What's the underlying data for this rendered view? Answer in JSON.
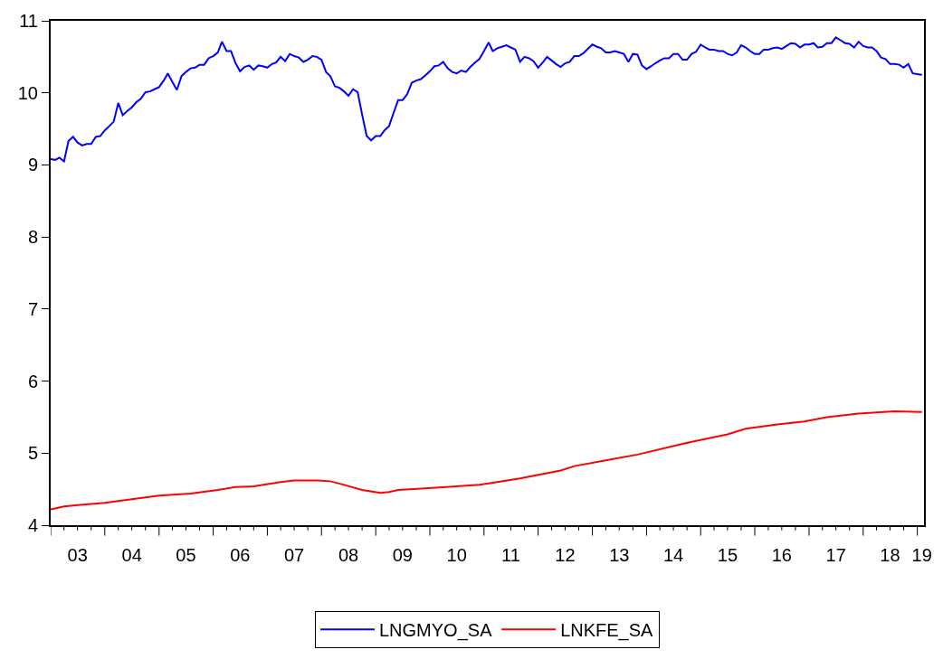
{
  "chart_data": {
    "type": "line",
    "x": [
      "2003-01",
      "2003-02",
      "2003-03",
      "2003-04",
      "2003-05",
      "2003-06",
      "2003-07",
      "2003-08",
      "2003-09",
      "2003-10",
      "2003-11",
      "2003-12",
      "2004-01",
      "2004-02",
      "2004-03",
      "2004-04",
      "2004-05",
      "2004-06",
      "2004-07",
      "2004-08",
      "2004-09",
      "2004-10",
      "2004-11",
      "2004-12",
      "2005-01",
      "2005-02",
      "2005-03",
      "2005-04",
      "2005-05",
      "2005-06",
      "2005-07",
      "2005-08",
      "2005-09",
      "2005-10",
      "2005-11",
      "2005-12",
      "2006-01",
      "2006-02",
      "2006-03",
      "2006-04",
      "2006-05",
      "2006-06",
      "2006-07",
      "2006-08",
      "2006-09",
      "2006-10",
      "2006-11",
      "2006-12",
      "2007-01",
      "2007-02",
      "2007-03",
      "2007-04",
      "2007-05",
      "2007-06",
      "2007-07",
      "2007-08",
      "2007-09",
      "2007-10",
      "2007-11",
      "2007-12",
      "2008-01",
      "2008-02",
      "2008-03",
      "2008-04",
      "2008-05",
      "2008-06",
      "2008-07",
      "2008-08",
      "2008-09",
      "2008-10",
      "2008-11",
      "2008-12",
      "2009-01",
      "2009-02",
      "2009-03",
      "2009-04",
      "2009-05",
      "2009-06",
      "2009-07",
      "2009-08",
      "2009-09",
      "2009-10",
      "2009-11",
      "2009-12",
      "2010-01",
      "2010-02",
      "2010-03",
      "2010-04",
      "2010-05",
      "2010-06",
      "2010-07",
      "2010-08",
      "2010-09",
      "2010-10",
      "2010-11",
      "2010-12",
      "2011-01",
      "2011-02",
      "2011-03",
      "2011-04",
      "2011-05",
      "2011-06",
      "2011-07",
      "2011-08",
      "2011-09",
      "2011-10",
      "2011-11",
      "2011-12",
      "2012-01",
      "2012-02",
      "2012-03",
      "2012-04",
      "2012-05",
      "2012-06",
      "2012-07",
      "2012-08",
      "2012-09",
      "2012-10",
      "2012-11",
      "2012-12",
      "2013-01",
      "2013-02",
      "2013-03",
      "2013-04",
      "2013-05",
      "2013-06",
      "2013-07",
      "2013-08",
      "2013-09",
      "2013-10",
      "2013-11",
      "2013-12",
      "2014-01",
      "2014-02",
      "2014-03",
      "2014-04",
      "2014-05",
      "2014-06",
      "2014-07",
      "2014-08",
      "2014-09",
      "2014-10",
      "2014-11",
      "2014-12",
      "2015-01",
      "2015-02",
      "2015-03",
      "2015-04",
      "2015-05",
      "2015-06",
      "2015-07",
      "2015-08",
      "2015-09",
      "2015-10",
      "2015-11",
      "2015-12",
      "2016-01",
      "2016-02",
      "2016-03",
      "2016-04",
      "2016-05",
      "2016-06",
      "2016-07",
      "2016-08",
      "2016-09",
      "2016-10",
      "2016-11",
      "2016-12",
      "2017-01",
      "2017-02",
      "2017-03",
      "2017-04",
      "2017-05",
      "2017-06",
      "2017-07",
      "2017-08",
      "2017-09",
      "2017-10",
      "2017-11",
      "2017-12",
      "2018-01",
      "2018-02",
      "2018-03",
      "2018-04",
      "2018-05",
      "2018-06",
      "2018-07",
      "2018-08",
      "2018-09",
      "2018-10",
      "2018-11",
      "2018-12",
      "2019-01",
      "2019-02"
    ],
    "series": [
      {
        "name": "LNGMYO_SA",
        "color": "#0000ff",
        "values": [
          9.08,
          9.07,
          9.1,
          9.05,
          9.33,
          9.39,
          9.31,
          9.27,
          9.29,
          9.29,
          9.39,
          9.4,
          9.48,
          9.54,
          9.6,
          9.86,
          9.69,
          9.75,
          9.8,
          9.87,
          9.92,
          10.01,
          10.02,
          10.05,
          10.08,
          10.17,
          10.27,
          10.15,
          10.04,
          10.23,
          10.29,
          10.34,
          10.35,
          10.39,
          10.39,
          10.48,
          10.51,
          10.56,
          10.71,
          10.58,
          10.58,
          10.41,
          10.3,
          10.36,
          10.38,
          10.32,
          10.38,
          10.37,
          10.35,
          10.4,
          10.42,
          10.5,
          10.44,
          10.54,
          10.51,
          10.49,
          10.43,
          10.46,
          10.51,
          10.5,
          10.46,
          10.29,
          10.23,
          10.09,
          10.07,
          10.02,
          9.96,
          10.05,
          10.01,
          9.7,
          9.4,
          9.34,
          9.4,
          9.4,
          9.48,
          9.54,
          9.72,
          9.9,
          9.9,
          9.98,
          10.14,
          10.17,
          10.19,
          10.24,
          10.3,
          10.37,
          10.38,
          10.43,
          10.34,
          10.29,
          10.27,
          10.31,
          10.29,
          10.36,
          10.42,
          10.47,
          10.58,
          10.7,
          10.58,
          10.62,
          10.64,
          10.66,
          10.63,
          10.6,
          10.43,
          10.5,
          10.48,
          10.44,
          10.35,
          10.42,
          10.5,
          10.45,
          10.4,
          10.36,
          10.41,
          10.43,
          10.51,
          10.51,
          10.55,
          10.61,
          10.67,
          10.64,
          10.62,
          10.56,
          10.56,
          10.58,
          10.56,
          10.54,
          10.43,
          10.54,
          10.53,
          10.38,
          10.33,
          10.37,
          10.41,
          10.45,
          10.48,
          10.48,
          10.54,
          10.54,
          10.46,
          10.46,
          10.54,
          10.57,
          10.67,
          10.63,
          10.6,
          10.6,
          10.58,
          10.58,
          10.54,
          10.52,
          10.56,
          10.66,
          10.63,
          10.58,
          10.54,
          10.54,
          10.6,
          10.6,
          10.62,
          10.63,
          10.61,
          10.65,
          10.69,
          10.68,
          10.63,
          10.67,
          10.67,
          10.69,
          10.63,
          10.64,
          10.69,
          10.69,
          10.77,
          10.73,
          10.69,
          10.68,
          10.63,
          10.71,
          10.65,
          10.63,
          10.63,
          10.58,
          10.49,
          10.47,
          10.4,
          10.4,
          10.39,
          10.35,
          10.4,
          10.27,
          10.26,
          10.25
        ]
      },
      {
        "name": "LNKFE_SA",
        "color": "#ff0000",
        "x": [
          "2003-01",
          "2003-04",
          "2003-07",
          "2004-01",
          "2004-07",
          "2005-01",
          "2005-08",
          "2006-02",
          "2006-06",
          "2006-10",
          "2007-04",
          "2007-07",
          "2007-12",
          "2008-03",
          "2008-06",
          "2008-10",
          "2009-02",
          "2009-04",
          "2009-06",
          "2009-12",
          "2010-07",
          "2010-12",
          "2011-02",
          "2011-09",
          "2012-06",
          "2012-09",
          "2013-04",
          "2013-11",
          "2014-09",
          "2015-07",
          "2015-11",
          "2016-06",
          "2016-12",
          "2017-05",
          "2017-12",
          "2018-08",
          "2019-02"
        ],
        "values": [
          4.22,
          4.26,
          4.28,
          4.31,
          4.36,
          4.41,
          4.44,
          4.49,
          4.53,
          4.54,
          4.6,
          4.62,
          4.62,
          4.61,
          4.56,
          4.49,
          4.45,
          4.46,
          4.49,
          4.51,
          4.54,
          4.56,
          4.58,
          4.65,
          4.76,
          4.82,
          4.9,
          4.98,
          5.13,
          5.26,
          5.34,
          5.4,
          5.44,
          5.5,
          5.55,
          5.58,
          5.57
        ]
      }
    ],
    "xlim": [
      "2003-01",
      "2019-02-15"
    ],
    "xticks": [
      {
        "value": "2003-07",
        "label": "03"
      },
      {
        "value": "2004-07",
        "label": "04"
      },
      {
        "value": "2005-07",
        "label": "05"
      },
      {
        "value": "2006-07",
        "label": "06"
      },
      {
        "value": "2007-07",
        "label": "07"
      },
      {
        "value": "2008-07",
        "label": "08"
      },
      {
        "value": "2009-07",
        "label": "09"
      },
      {
        "value": "2010-07",
        "label": "10"
      },
      {
        "value": "2011-07",
        "label": "11"
      },
      {
        "value": "2012-07",
        "label": "12"
      },
      {
        "value": "2013-07",
        "label": "13"
      },
      {
        "value": "2014-07",
        "label": "14"
      },
      {
        "value": "2015-07",
        "label": "15"
      },
      {
        "value": "2016-07",
        "label": "16"
      },
      {
        "value": "2017-07",
        "label": "17"
      },
      {
        "value": "2018-07",
        "label": "18"
      },
      {
        "value": "2019-02",
        "label": "19"
      },
      {
        "value": "2003-01",
        "label": null
      },
      {
        "value": "2003-04",
        "label": null
      },
      {
        "value": "2003-07",
        "label": null
      },
      {
        "value": "2003-10",
        "label": null
      },
      {
        "value": "2004-01",
        "label": null
      },
      {
        "value": "2004-04",
        "label": null
      },
      {
        "value": "2004-07",
        "label": null
      },
      {
        "value": "2004-10",
        "label": null
      },
      {
        "value": "2005-01",
        "label": null
      },
      {
        "value": "2005-04",
        "label": null
      },
      {
        "value": "2005-07",
        "label": null
      },
      {
        "value": "2005-10",
        "label": null
      },
      {
        "value": "2006-01",
        "label": null
      },
      {
        "value": "2006-04",
        "label": null
      },
      {
        "value": "2006-07",
        "label": null
      },
      {
        "value": "2006-10",
        "label": null
      },
      {
        "value": "2007-01",
        "label": null
      },
      {
        "value": "2007-04",
        "label": null
      },
      {
        "value": "2007-07",
        "label": null
      },
      {
        "value": "2007-10",
        "label": null
      },
      {
        "value": "2008-01",
        "label": null
      },
      {
        "value": "2008-04",
        "label": null
      },
      {
        "value": "2008-07",
        "label": null
      },
      {
        "value": "2008-10",
        "label": null
      },
      {
        "value": "2009-01",
        "label": null
      },
      {
        "value": "2009-04",
        "label": null
      },
      {
        "value": "2009-07",
        "label": null
      },
      {
        "value": "2009-10",
        "label": null
      },
      {
        "value": "2010-01",
        "label": null
      },
      {
        "value": "2010-04",
        "label": null
      },
      {
        "value": "2010-07",
        "label": null
      },
      {
        "value": "2010-10",
        "label": null
      },
      {
        "value": "2011-01",
        "label": null
      },
      {
        "value": "2011-04",
        "label": null
      },
      {
        "value": "2011-07",
        "label": null
      },
      {
        "value": "2011-10",
        "label": null
      },
      {
        "value": "2012-01",
        "label": null
      },
      {
        "value": "2012-04",
        "label": null
      },
      {
        "value": "2012-07",
        "label": null
      },
      {
        "value": "2012-10",
        "label": null
      },
      {
        "value": "2013-01",
        "label": null
      },
      {
        "value": "2013-04",
        "label": null
      },
      {
        "value": "2013-07",
        "label": null
      },
      {
        "value": "2013-10",
        "label": null
      },
      {
        "value": "2014-01",
        "label": null
      },
      {
        "value": "2014-04",
        "label": null
      },
      {
        "value": "2014-07",
        "label": null
      },
      {
        "value": "2014-10",
        "label": null
      },
      {
        "value": "2015-01",
        "label": null
      },
      {
        "value": "2015-04",
        "label": null
      },
      {
        "value": "2015-07",
        "label": null
      },
      {
        "value": "2015-10",
        "label": null
      },
      {
        "value": "2016-01",
        "label": null
      },
      {
        "value": "2016-04",
        "label": null
      },
      {
        "value": "2016-07",
        "label": null
      },
      {
        "value": "2016-10",
        "label": null
      },
      {
        "value": "2017-01",
        "label": null
      },
      {
        "value": "2017-04",
        "label": null
      },
      {
        "value": "2017-07",
        "label": null
      },
      {
        "value": "2017-10",
        "label": null
      },
      {
        "value": "2018-01",
        "label": null
      },
      {
        "value": "2018-04",
        "label": null
      },
      {
        "value": "2018-07",
        "label": null
      },
      {
        "value": "2018-10",
        "label": null
      },
      {
        "value": "2019-01",
        "label": null
      }
    ],
    "ylim": [
      4,
      11
    ],
    "yticks": [
      4,
      5,
      6,
      7,
      8,
      9,
      10,
      11
    ],
    "legend": "bottom",
    "marker": "none",
    "line_style": "solid"
  }
}
